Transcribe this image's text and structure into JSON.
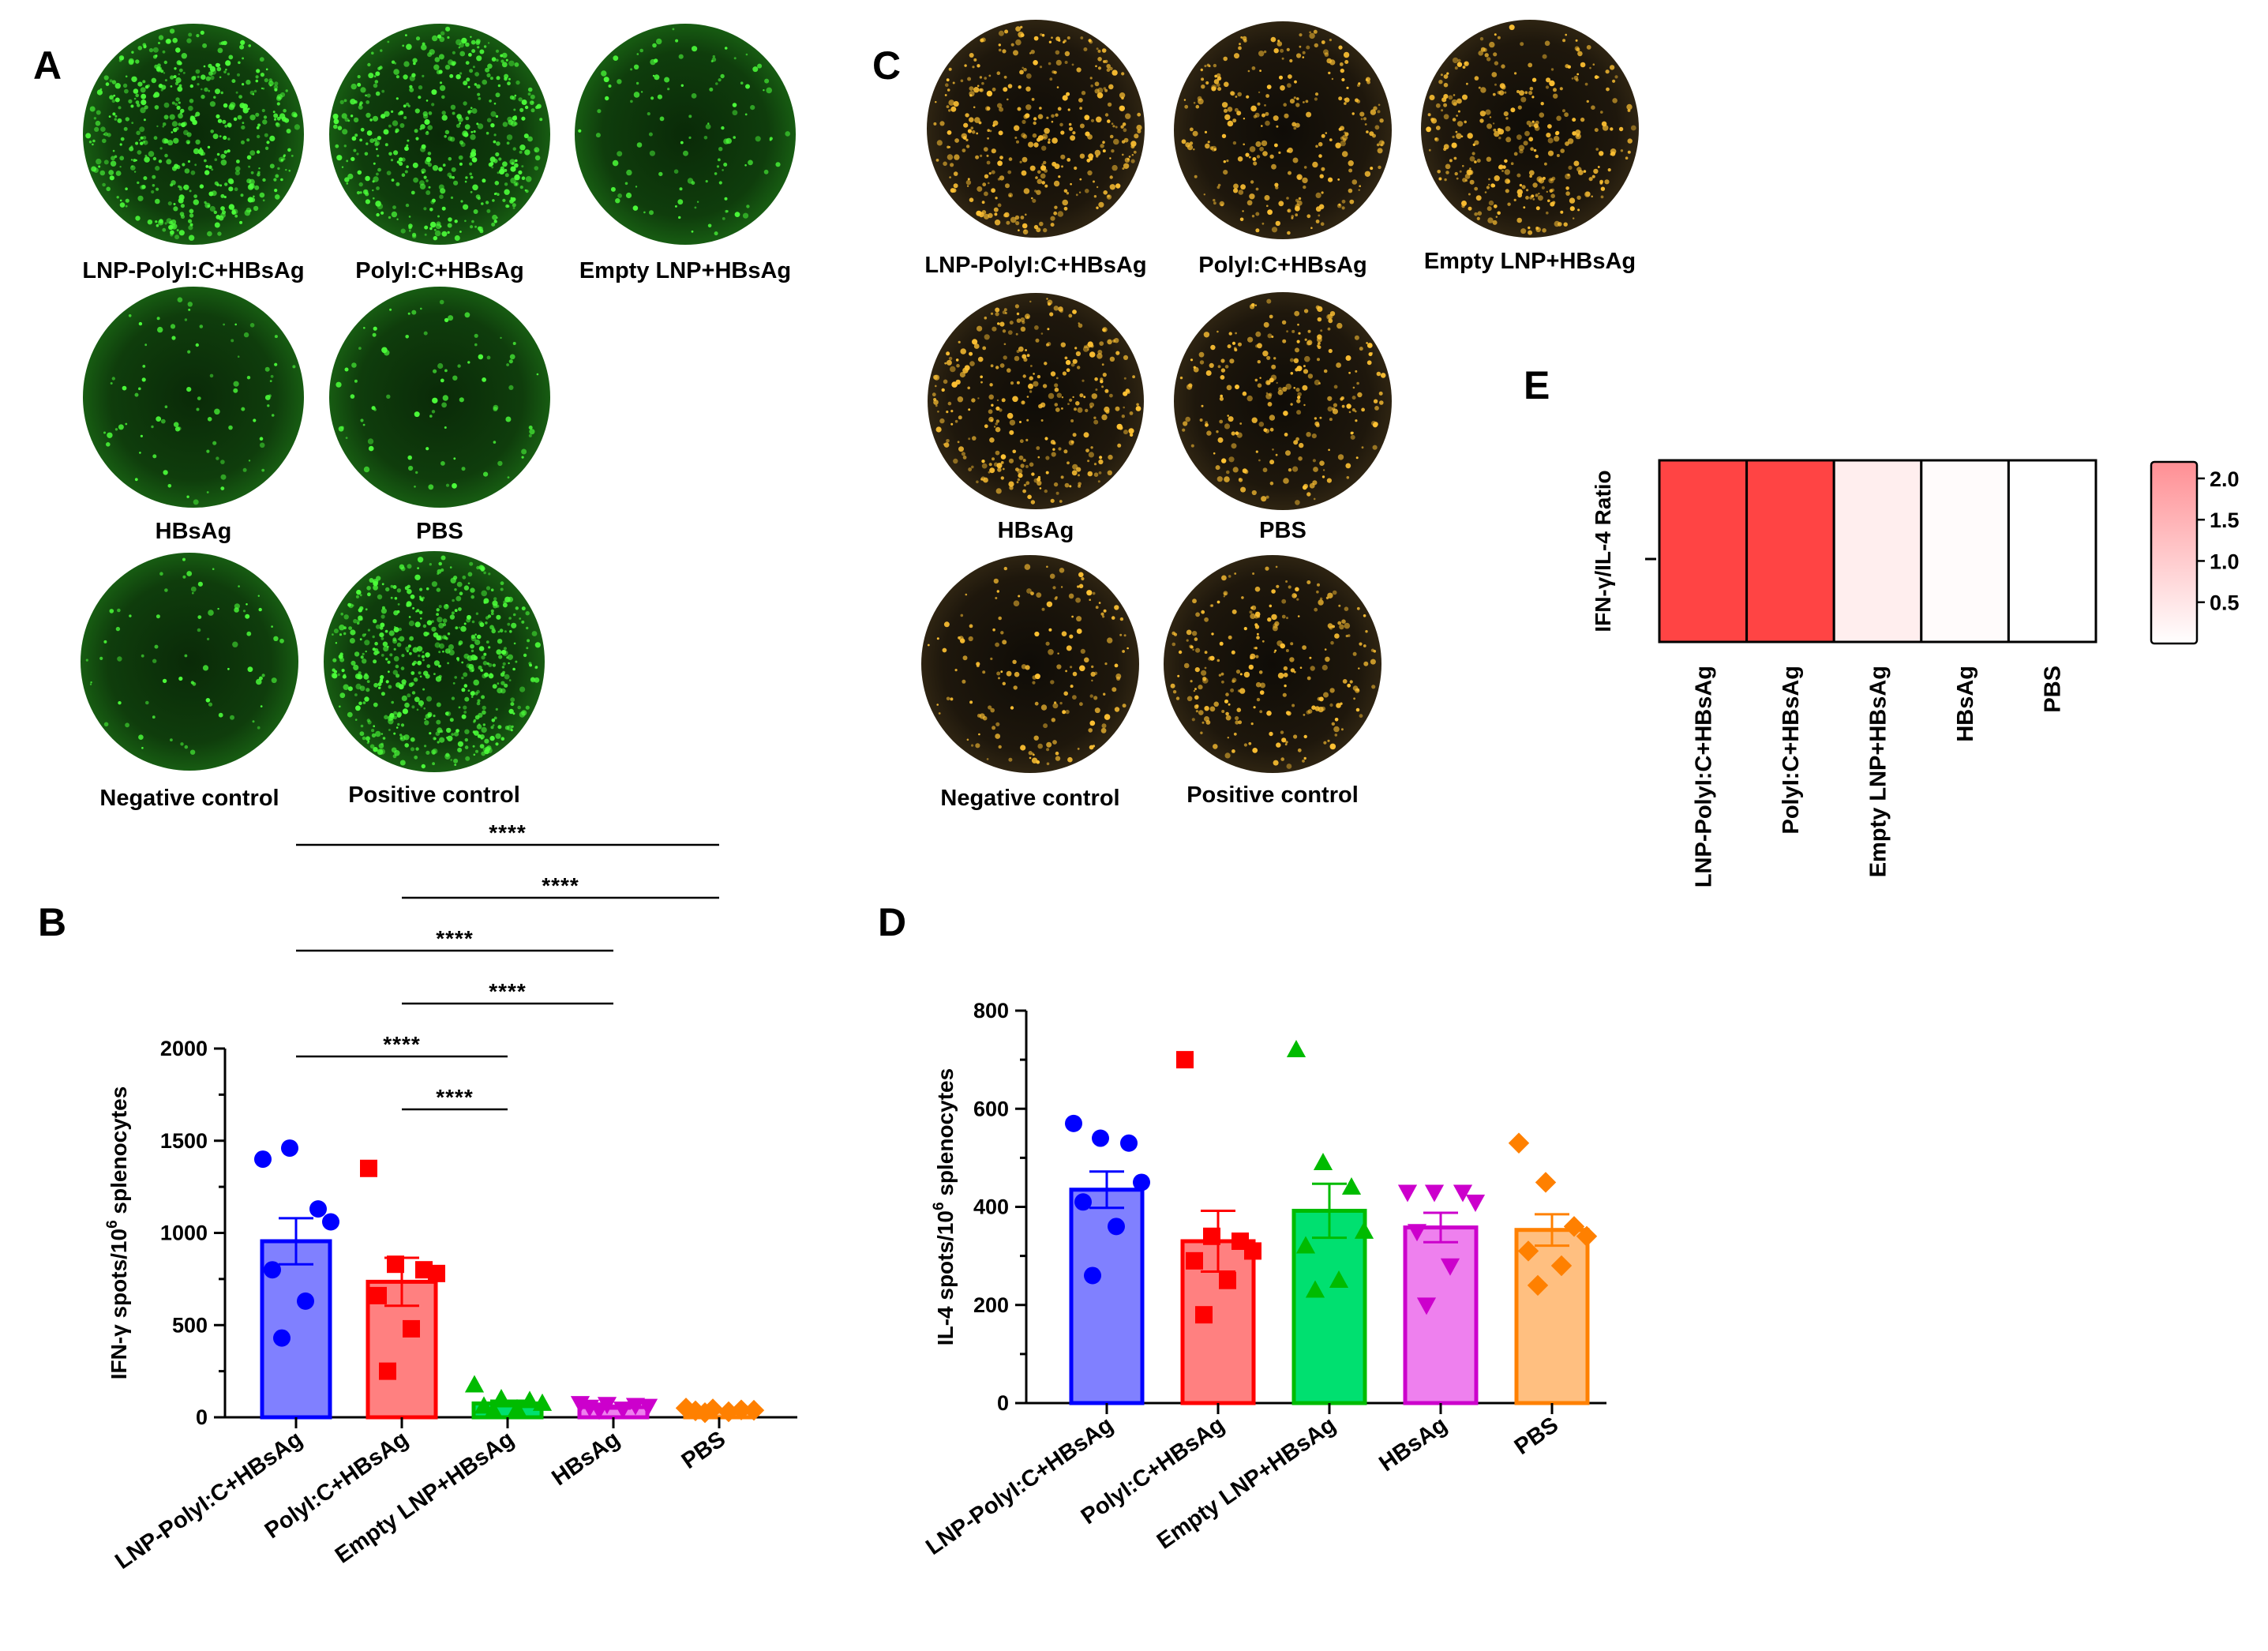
{
  "panels": {
    "A": {
      "letter": "A",
      "wells": [
        {
          "label": "LNP-PolyI:C+HBsAg",
          "density": 0.85
        },
        {
          "label": "PolyI:C+HBsAg",
          "density": 0.8
        },
        {
          "label": "Empty LNP+HBsAg",
          "density": 0.15
        },
        {
          "label": "HBsAg",
          "density": 0.08
        },
        {
          "label": "PBS",
          "density": 0.08
        },
        {
          "label": "Negative control",
          "density": 0.06
        },
        {
          "label": "Positive control",
          "density": 1.0
        }
      ],
      "spot_color": "#4cff3a",
      "well_color": "#0d3d0a"
    },
    "C": {
      "letter": "C",
      "wells": [
        {
          "label": "LNP-PolyI:C+HBsAg",
          "density": 0.6
        },
        {
          "label": "PolyI:C+HBsAg",
          "density": 0.45
        },
        {
          "label": "Empty LNP+HBsAg",
          "density": 0.55
        },
        {
          "label": "HBsAg",
          "density": 0.55
        },
        {
          "label": "PBS",
          "density": 0.4
        },
        {
          "label": "Negative control",
          "density": 0.25
        },
        {
          "label": "Positive control",
          "density": 0.4
        }
      ],
      "spot_color": "#ffc233",
      "well_color": "#1e170c"
    },
    "B": {
      "letter": "B"
    },
    "D": {
      "letter": "D"
    },
    "E": {
      "letter": "E"
    }
  },
  "chart_data": [
    {
      "panel": "B",
      "type": "bar",
      "categories": [
        "LNP-PolyI:C+HBsAg",
        "PolyI:C+HBsAg",
        "Empty LNP+HBsAg",
        "HBsAg",
        "PBS"
      ],
      "values": [
        955,
        735,
        75,
        55,
        35
      ],
      "sem": [
        125,
        130,
        15,
        8,
        5
      ],
      "points": [
        [
          1400,
          1460,
          1130,
          1060,
          800,
          630,
          430
        ],
        [
          1350,
          830,
          800,
          780,
          660,
          480,
          250
        ],
        [
          175,
          100,
          90,
          75,
          60,
          45,
          35
        ],
        [
          75,
          70,
          65,
          60,
          55,
          45,
          40
        ],
        [
          50,
          45,
          40,
          38,
          35,
          30,
          25
        ]
      ],
      "markers": [
        "circle",
        "square",
        "triangle",
        "triangle-down",
        "diamond"
      ],
      "colors": [
        "#0000ff",
        "#ff0000",
        "#00bb00",
        "#cc00cc",
        "#ff8000"
      ],
      "fill_colors": [
        "#8080ff",
        "#ff8080",
        "#00e070",
        "#ee80ee",
        "#ffbf80"
      ],
      "ylabel_parts": [
        "IFN-γ spots/10",
        "6",
        " splenocytes"
      ],
      "yticks": [
        0,
        500,
        1000,
        1500,
        2000
      ],
      "ylim": [
        0,
        2000
      ],
      "significance": [
        {
          "from": 0,
          "to": 4,
          "label": "****"
        },
        {
          "from": 1,
          "to": 4,
          "label": "****"
        },
        {
          "from": 0,
          "to": 3,
          "label": "****"
        },
        {
          "from": 1,
          "to": 3,
          "label": "****"
        },
        {
          "from": 0,
          "to": 2,
          "label": "****"
        },
        {
          "from": 1,
          "to": 2,
          "label": "****"
        }
      ]
    },
    {
      "panel": "D",
      "type": "bar",
      "categories": [
        "LNP-PolyI:C+HBsAg",
        "PolyI:C+HBsAg",
        "Empty LNP+HBsAg",
        "HBsAg",
        "PBS"
      ],
      "values": [
        435,
        330,
        392,
        358,
        353
      ],
      "sem": [
        37,
        62,
        55,
        30,
        32
      ],
      "points": [
        [
          570,
          540,
          530,
          450,
          410,
          360,
          260
        ],
        [
          700,
          340,
          330,
          310,
          290,
          250,
          180
        ],
        [
          720,
          490,
          440,
          350,
          320,
          250,
          230
        ],
        [
          430,
          430,
          430,
          410,
          350,
          280,
          200
        ],
        [
          530,
          450,
          360,
          340,
          310,
          280,
          240
        ]
      ],
      "markers": [
        "circle",
        "square",
        "triangle",
        "triangle-down",
        "diamond"
      ],
      "colors": [
        "#0000ff",
        "#ff0000",
        "#00bb00",
        "#cc00cc",
        "#ff8000"
      ],
      "fill_colors": [
        "#8080ff",
        "#ff8080",
        "#00e070",
        "#ee80ee",
        "#ffbf80"
      ],
      "ylabel_parts": [
        "IL-4 spots/10",
        "6",
        " splenocytes"
      ],
      "yticks": [
        0,
        200,
        400,
        600,
        800
      ],
      "ylim": [
        0,
        800
      ]
    },
    {
      "panel": "E",
      "type": "heatmap",
      "categories": [
        "LNP-PolyI:C+HBsAg",
        "PolyI:C+HBsAg",
        "Empty LNP+HBsAg",
        "HBsAg",
        "PBS"
      ],
      "values": [
        2.2,
        2.2,
        0.2,
        0.05,
        0.0
      ],
      "ylabel": "IFN-γ/IL-4 Ratio",
      "colorbar_ticks": [
        "2.0",
        "1.5",
        "1.0",
        "0.5"
      ],
      "colorbar_values": [
        2.0,
        1.5,
        1.0,
        0.5
      ],
      "vmin": 0,
      "vmax": 2.2,
      "color_min": "#ffffff",
      "color_max": "#ff4444"
    }
  ]
}
